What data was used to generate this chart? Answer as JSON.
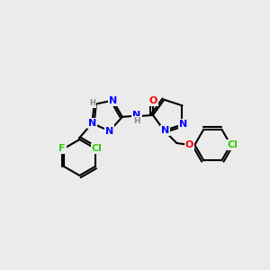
{
  "bg_color": "#ebebeb",
  "bond_color": "#000000",
  "bond_width": 1.5,
  "atom_colors": {
    "N": "#0000ff",
    "O": "#ff0000",
    "F": "#33cc00",
    "Cl": "#33cc00",
    "C": "#000000",
    "H": "#808080"
  },
  "font_size": 7.5
}
